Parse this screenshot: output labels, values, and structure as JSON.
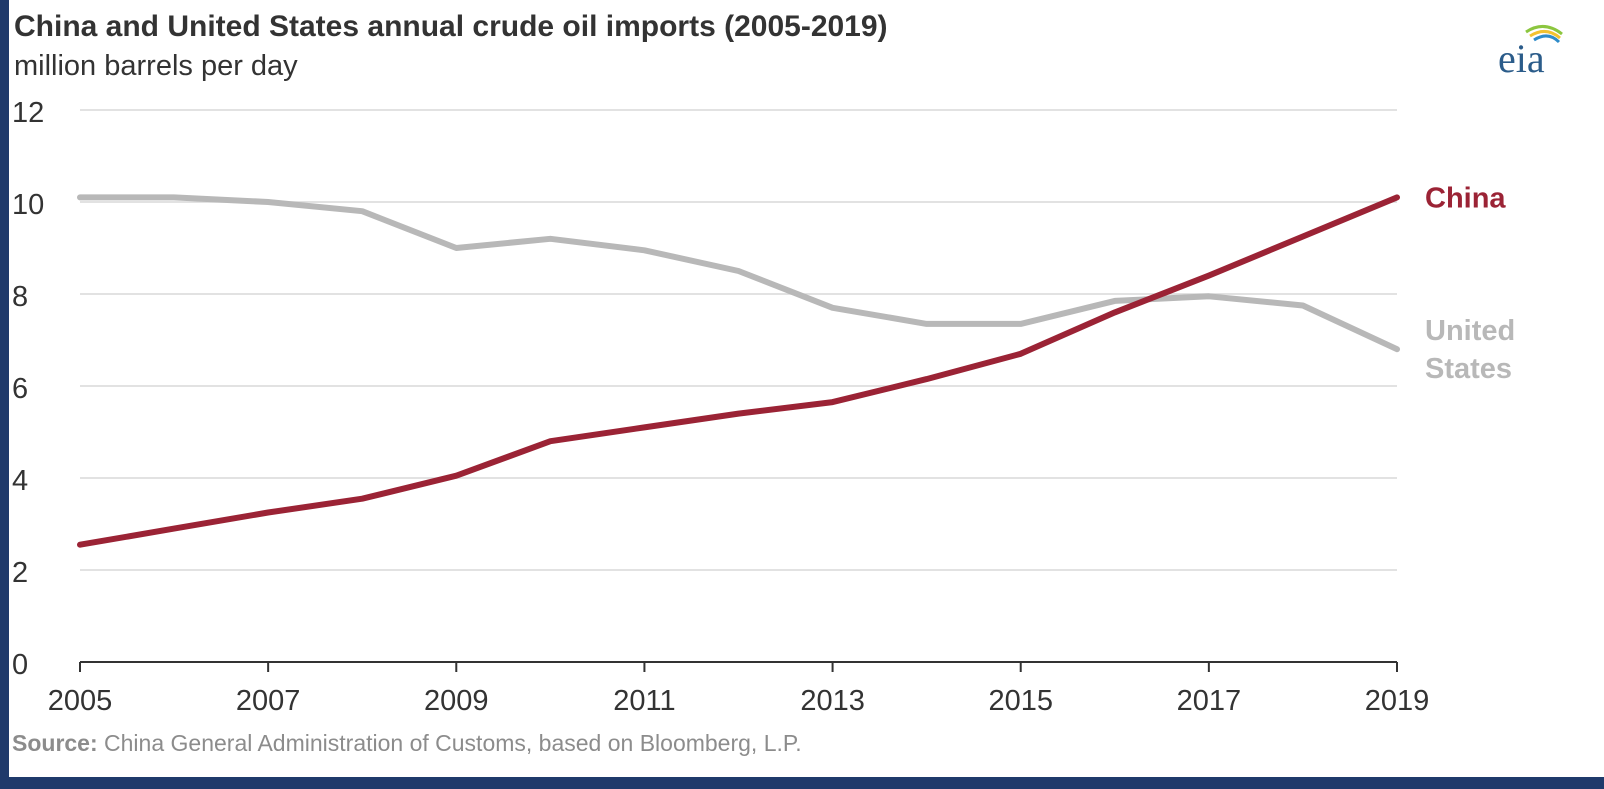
{
  "title": "China and United States annual crude oil imports (2005-2019)",
  "subtitle": "million barrels per day",
  "logo_text": "eia",
  "source_label": "Source:",
  "source_text": " China General Administration of Customs, based on Bloomberg, L.P.",
  "colors": {
    "china": "#9b2335",
    "united_states": "#b8b8b8",
    "grid": "#d9d9d9",
    "axis": "#333333",
    "text": "#333333"
  },
  "chart_data": {
    "type": "line",
    "title": "China and United States annual crude oil imports (2005-2019)",
    "subtitle": "million barrels per day",
    "x": [
      2005,
      2006,
      2007,
      2008,
      2009,
      2010,
      2011,
      2012,
      2013,
      2014,
      2015,
      2016,
      2017,
      2018,
      2019
    ],
    "x_ticks": [
      "2005",
      "2007",
      "2009",
      "2011",
      "2013",
      "2015",
      "2017",
      "2019"
    ],
    "y_ticks": [
      "0",
      "2",
      "4",
      "6",
      "8",
      "10",
      "12"
    ],
    "ylim": [
      0,
      12
    ],
    "xlim": [
      2005,
      2019
    ],
    "grid": true,
    "legend": "direct labels at line ends (right)",
    "series": [
      {
        "name": "China",
        "label_lines": [
          "China"
        ],
        "color": "#9b2335",
        "values": [
          2.55,
          2.9,
          3.25,
          3.55,
          4.05,
          4.8,
          5.1,
          5.4,
          5.65,
          6.15,
          6.7,
          7.6,
          8.4,
          9.25,
          10.1
        ]
      },
      {
        "name": "United States",
        "label_lines": [
          "United",
          "States"
        ],
        "color": "#b8b8b8",
        "values": [
          10.1,
          10.1,
          10.0,
          9.8,
          9.0,
          9.2,
          8.95,
          8.5,
          7.7,
          7.35,
          7.35,
          7.85,
          7.95,
          7.75,
          6.8
        ]
      }
    ]
  }
}
